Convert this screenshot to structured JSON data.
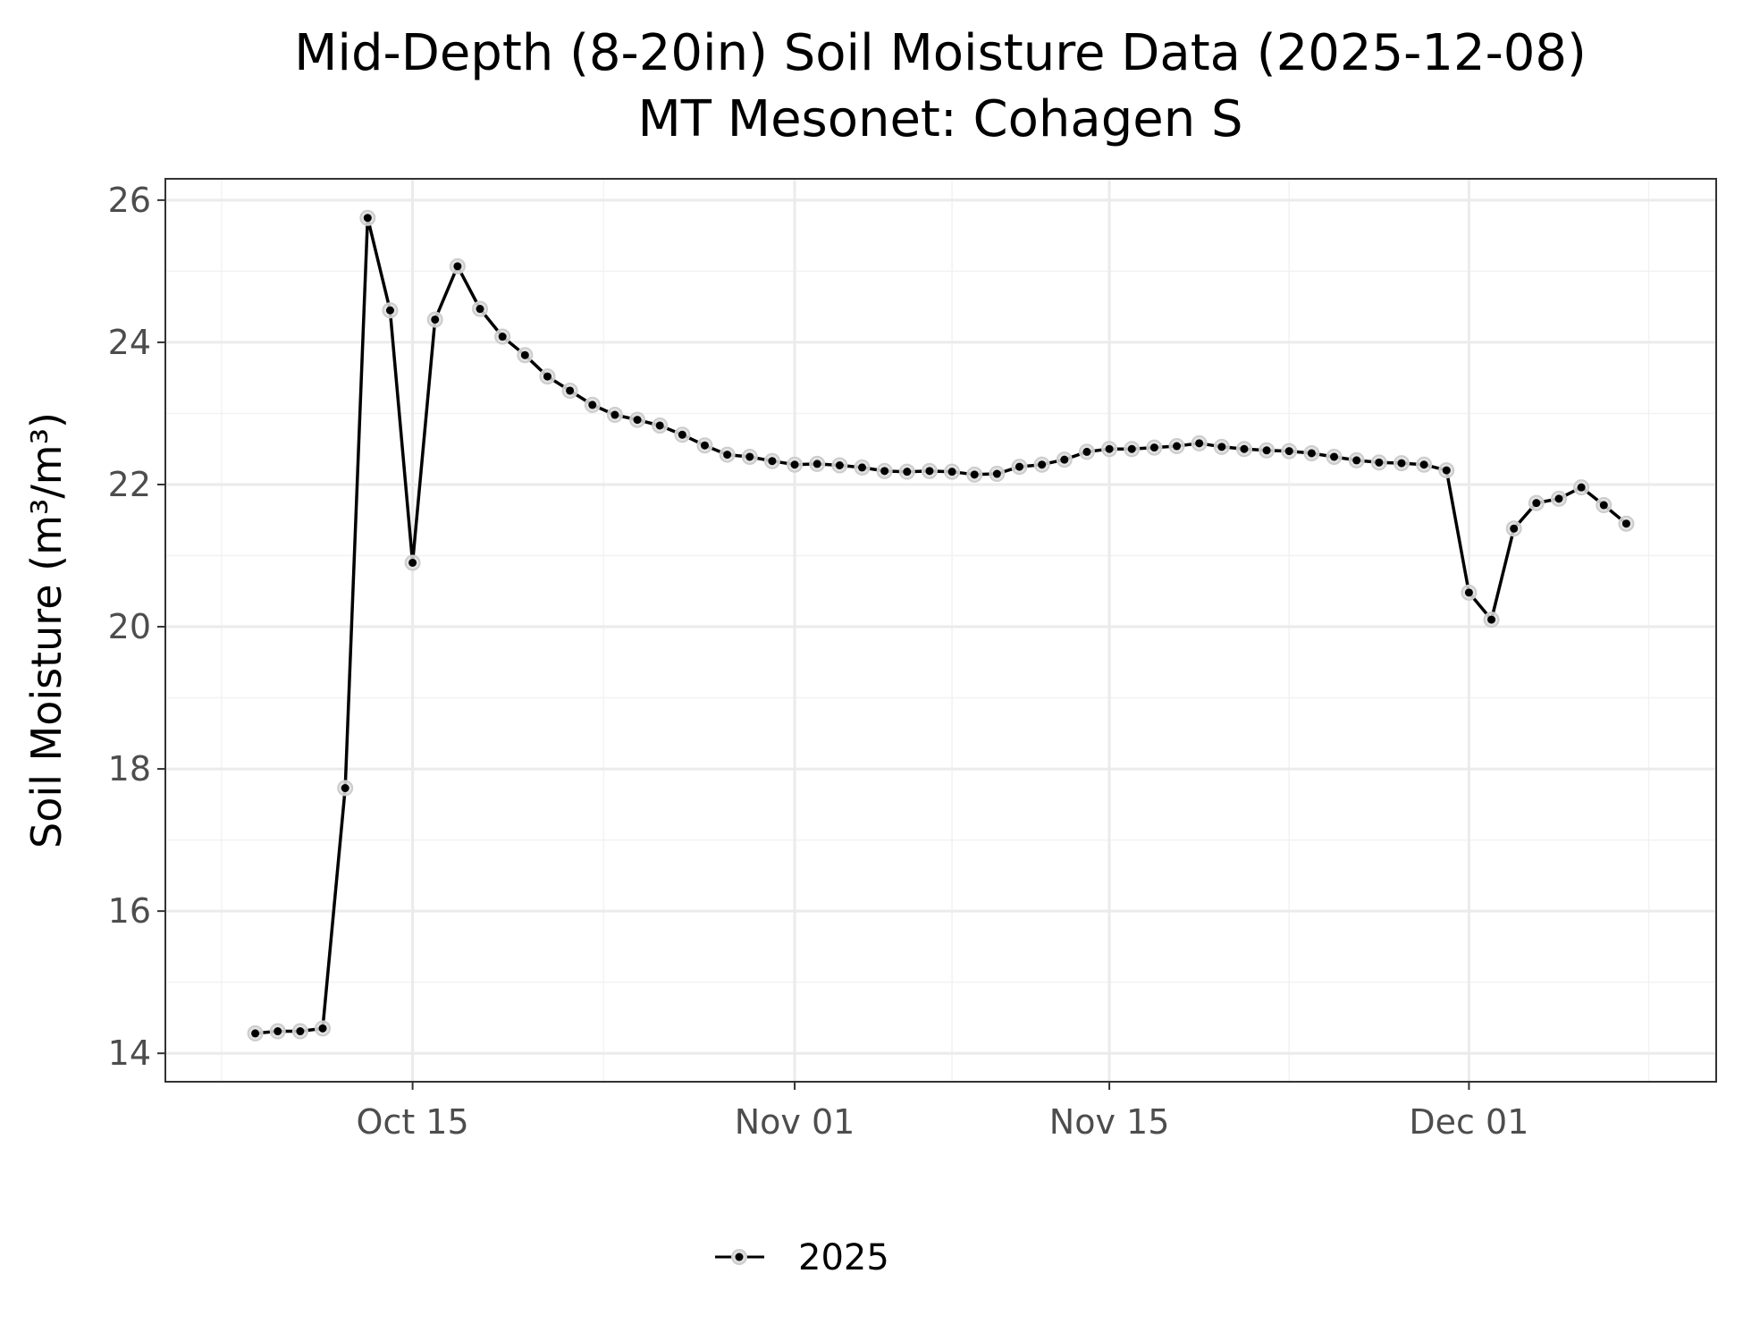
{
  "chart_data": {
    "type": "line",
    "title": "Mid-Depth (8-20in) Soil Moisture Data (2025-12-08)",
    "subtitle": "MT Mesonet: Cohagen S",
    "ylabel": "Soil Moisture (m³/m³)",
    "xlabel": "",
    "ylim": [
      13.6,
      26.3
    ],
    "xlim": [
      "2025-10-04",
      "2025-12-12"
    ],
    "y_ticks": [
      14,
      16,
      18,
      20,
      22,
      24,
      26
    ],
    "x_ticks": [
      {
        "date": "2025-10-15",
        "label": "Oct 15"
      },
      {
        "date": "2025-11-01",
        "label": "Nov 01"
      },
      {
        "date": "2025-11-15",
        "label": "Nov 15"
      },
      {
        "date": "2025-12-01",
        "label": "Dec 01"
      }
    ],
    "grid": true,
    "legend_position": "bottom",
    "series": [
      {
        "name": "2025",
        "color": "#000000",
        "x": [
          "2025-10-08",
          "2025-10-09",
          "2025-10-10",
          "2025-10-11",
          "2025-10-12",
          "2025-10-13",
          "2025-10-14",
          "2025-10-15",
          "2025-10-16",
          "2025-10-17",
          "2025-10-18",
          "2025-10-19",
          "2025-10-20",
          "2025-10-21",
          "2025-10-22",
          "2025-10-23",
          "2025-10-24",
          "2025-10-25",
          "2025-10-26",
          "2025-10-27",
          "2025-10-28",
          "2025-10-29",
          "2025-10-30",
          "2025-10-31",
          "2025-11-01",
          "2025-11-02",
          "2025-11-03",
          "2025-11-04",
          "2025-11-05",
          "2025-11-06",
          "2025-11-07",
          "2025-11-08",
          "2025-11-09",
          "2025-11-10",
          "2025-11-11",
          "2025-11-12",
          "2025-11-13",
          "2025-11-14",
          "2025-11-15",
          "2025-11-16",
          "2025-11-17",
          "2025-11-18",
          "2025-11-19",
          "2025-11-20",
          "2025-11-21",
          "2025-11-22",
          "2025-11-23",
          "2025-11-24",
          "2025-11-25",
          "2025-11-26",
          "2025-11-27",
          "2025-11-28",
          "2025-11-29",
          "2025-11-30",
          "2025-12-01",
          "2025-12-02",
          "2025-12-03",
          "2025-12-04",
          "2025-12-05",
          "2025-12-06",
          "2025-12-07",
          "2025-12-08"
        ],
        "y": [
          14.28,
          14.31,
          14.31,
          14.35,
          17.73,
          25.75,
          24.45,
          20.9,
          24.32,
          25.07,
          24.47,
          24.08,
          23.82,
          23.52,
          23.32,
          23.12,
          22.98,
          22.91,
          22.83,
          22.7,
          22.55,
          22.42,
          22.39,
          22.33,
          22.28,
          22.29,
          22.27,
          22.24,
          22.19,
          22.18,
          22.19,
          22.18,
          22.14,
          22.15,
          22.25,
          22.28,
          22.35,
          22.46,
          22.5,
          22.5,
          22.52,
          22.54,
          22.58,
          22.53,
          22.5,
          22.48,
          22.47,
          22.44,
          22.39,
          22.34,
          22.31,
          22.3,
          22.28,
          22.2,
          20.48,
          20.1,
          21.38,
          21.74,
          21.8,
          21.96,
          21.71,
          21.45
        ]
      }
    ]
  }
}
